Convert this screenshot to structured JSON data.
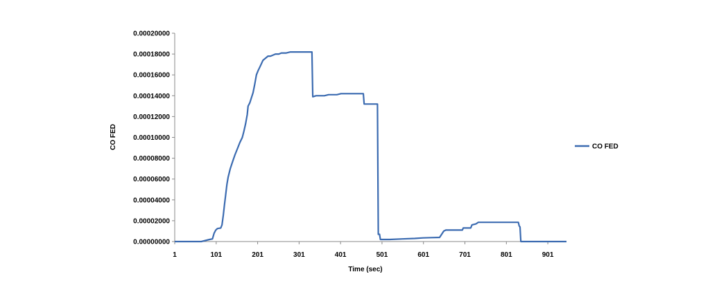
{
  "chart_data": {
    "type": "line",
    "title": "",
    "xlabel": "Time (sec)",
    "ylabel": "CO FED",
    "xlim": [
      1,
      946
    ],
    "ylim": [
      0,
      0.0002
    ],
    "y_ticks": [
      "0.00000000",
      "0.00002000",
      "0.00004000",
      "0.00006000",
      "0.00008000",
      "0.00010000",
      "0.00012000",
      "0.00014000",
      "0.00016000",
      "0.00018000",
      "0.00020000"
    ],
    "y_tick_values": [
      0,
      2e-05,
      4e-05,
      6e-05,
      8e-05,
      0.0001,
      0.00012,
      0.00014,
      0.00016,
      0.00018,
      0.0002
    ],
    "x_ticks": [
      "1",
      "101",
      "201",
      "301",
      "401",
      "501",
      "601",
      "701",
      "801",
      "901"
    ],
    "x_tick_values": [
      1,
      101,
      201,
      301,
      401,
      501,
      601,
      701,
      801,
      901
    ],
    "grid": false,
    "legend_position": "right",
    "series": [
      {
        "name": "CO FED",
        "color": "#3a6ab0",
        "points": [
          [
            1,
            0
          ],
          [
            65,
            0
          ],
          [
            75,
            1e-06
          ],
          [
            85,
            2e-06
          ],
          [
            92,
            2.5e-06
          ],
          [
            96,
            8e-06
          ],
          [
            100,
            1.1e-05
          ],
          [
            104,
            1.25e-05
          ],
          [
            112,
            1.3e-05
          ],
          [
            115,
            1.6e-05
          ],
          [
            118,
            2.5e-05
          ],
          [
            121,
            3.5e-05
          ],
          [
            124,
            4.5e-05
          ],
          [
            127,
            5.5e-05
          ],
          [
            130,
            6.2e-05
          ],
          [
            135,
            7e-05
          ],
          [
            140,
            7.6e-05
          ],
          [
            146,
            8.3e-05
          ],
          [
            152,
            8.9e-05
          ],
          [
            158,
            9.5e-05
          ],
          [
            164,
            0.0001
          ],
          [
            168,
            0.000106
          ],
          [
            172,
            0.000113
          ],
          [
            176,
            0.000122
          ],
          [
            178,
            0.00013
          ],
          [
            182,
            0.000133
          ],
          [
            186,
            0.000138
          ],
          [
            190,
            0.000143
          ],
          [
            194,
            0.000151
          ],
          [
            198,
            0.00016
          ],
          [
            202,
            0.000164
          ],
          [
            208,
            0.000169
          ],
          [
            214,
            0.000174
          ],
          [
            220,
            0.000176
          ],
          [
            226,
            0.000178
          ],
          [
            232,
            0.000178
          ],
          [
            238,
            0.000179
          ],
          [
            244,
            0.00018
          ],
          [
            252,
            0.00018
          ],
          [
            258,
            0.000181
          ],
          [
            270,
            0.000181
          ],
          [
            280,
            0.000182
          ],
          [
            332,
            0.000182
          ],
          [
            334,
            0.000139
          ],
          [
            342,
            0.00014
          ],
          [
            352,
            0.00014
          ],
          [
            362,
            0.00014
          ],
          [
            372,
            0.000141
          ],
          [
            382,
            0.000141
          ],
          [
            392,
            0.000141
          ],
          [
            402,
            0.000142
          ],
          [
            414,
            0.000142
          ],
          [
            426,
            0.000142
          ],
          [
            438,
            0.000142
          ],
          [
            456,
            0.000142
          ],
          [
            458,
            0.000132
          ],
          [
            490,
            0.000132
          ],
          [
            492,
            7e-06
          ],
          [
            495,
            7e-06
          ],
          [
            497,
            2e-06
          ],
          [
            520,
            2e-06
          ],
          [
            550,
            2.5e-06
          ],
          [
            580,
            3e-06
          ],
          [
            600,
            3.5e-06
          ],
          [
            620,
            3.8e-06
          ],
          [
            640,
            4e-06
          ],
          [
            645,
            7e-06
          ],
          [
            650,
            1e-05
          ],
          [
            655,
            1.1e-05
          ],
          [
            695,
            1.1e-05
          ],
          [
            697,
            1.3e-05
          ],
          [
            715,
            1.3e-05
          ],
          [
            718,
            1.6e-05
          ],
          [
            728,
            1.7e-05
          ],
          [
            733,
            1.85e-05
          ],
          [
            830,
            1.85e-05
          ],
          [
            832,
            1.5e-05
          ],
          [
            834,
            1.4e-05
          ],
          [
            836,
            0
          ],
          [
            946,
            0
          ]
        ]
      }
    ]
  }
}
